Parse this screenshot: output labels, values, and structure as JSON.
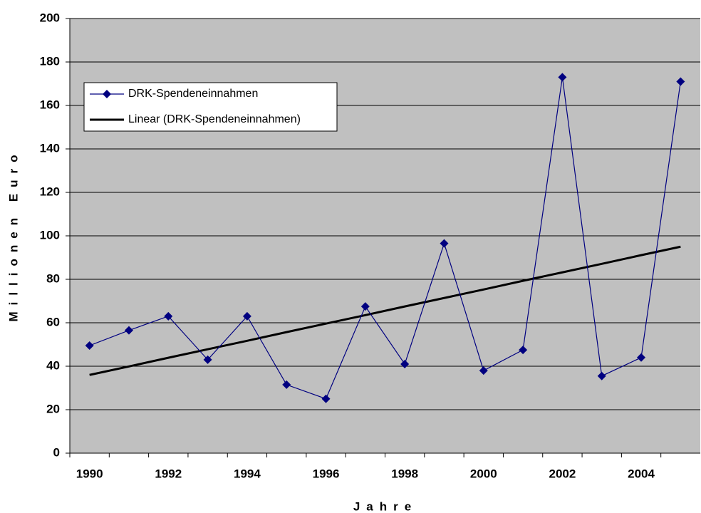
{
  "chart_data": {
    "type": "line",
    "y_label": "Millionen Euro",
    "x_label": "Jahre",
    "categories": [
      "1990",
      null,
      "1992",
      null,
      "1994",
      null,
      "1996",
      null,
      "1998",
      null,
      "2000",
      null,
      "2002",
      null,
      "2004",
      null
    ],
    "series": [
      {
        "name": "DRK-Spendeneinnahmen",
        "color": "#000080",
        "marker": "diamond",
        "values": [
          49.5,
          56.5,
          63,
          43,
          63,
          31.5,
          25,
          67.5,
          41,
          96.5,
          38,
          47.5,
          173,
          35.5,
          44,
          171
        ]
      },
      {
        "name": "Linear (DRK-Spendeneinnahmen)",
        "color": "#000000",
        "values": [
          36,
          39.9,
          43.9,
          47.8,
          51.7,
          55.7,
          59.6,
          63.5,
          67.5,
          71.4,
          75.3,
          79.3,
          83.2,
          87.1,
          91.1,
          95
        ]
      }
    ],
    "ylim": [
      0,
      200
    ],
    "yticks": [
      0,
      20,
      40,
      60,
      80,
      100,
      120,
      140,
      160,
      180,
      200
    ],
    "grid": true,
    "legend": "upper left",
    "plot_background": "#c0c0c0"
  }
}
